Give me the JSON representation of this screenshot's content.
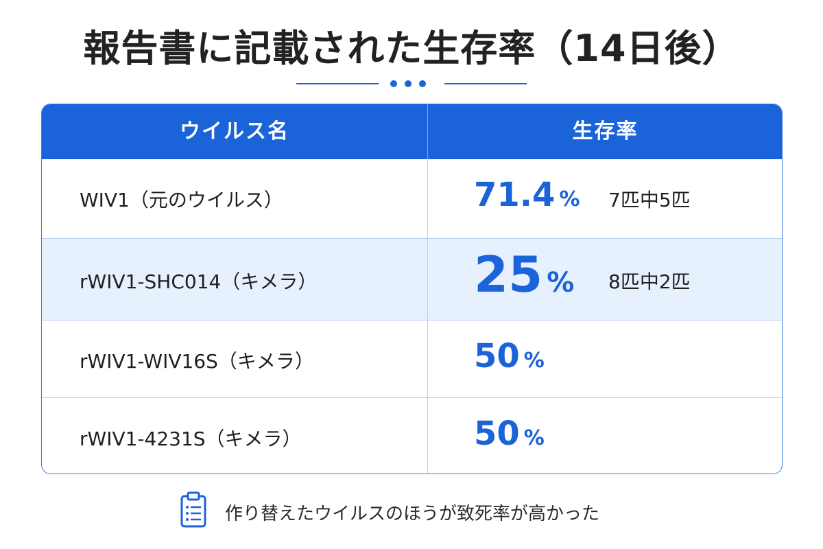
{
  "title": "報告書に記載された生存率（14日後）",
  "table": {
    "headers": [
      "ウイルス名",
      "生存率"
    ],
    "rows": [
      {
        "virus": "WIV1（元のウイルス）",
        "rate": "71.4",
        "unit": "%",
        "count": "7匹中5匹"
      },
      {
        "virus": "rWIV1-SHC014（キメラ）",
        "rate": "25",
        "unit": "%",
        "count": "8匹中2匹"
      },
      {
        "virus": "rWIV1-WIV16S（キメラ）",
        "rate": "50",
        "unit": "%",
        "count": ""
      },
      {
        "virus": "rWIV1-4231S（キメラ）",
        "rate": "50",
        "unit": "%",
        "count": ""
      }
    ]
  },
  "note": {
    "icon": "clipboard-list-icon",
    "text": "作り替えたウイルスのほうが致死率が高かった"
  },
  "colors": {
    "accent": "#1a63d8",
    "row_highlight": "#e7f0fd"
  }
}
